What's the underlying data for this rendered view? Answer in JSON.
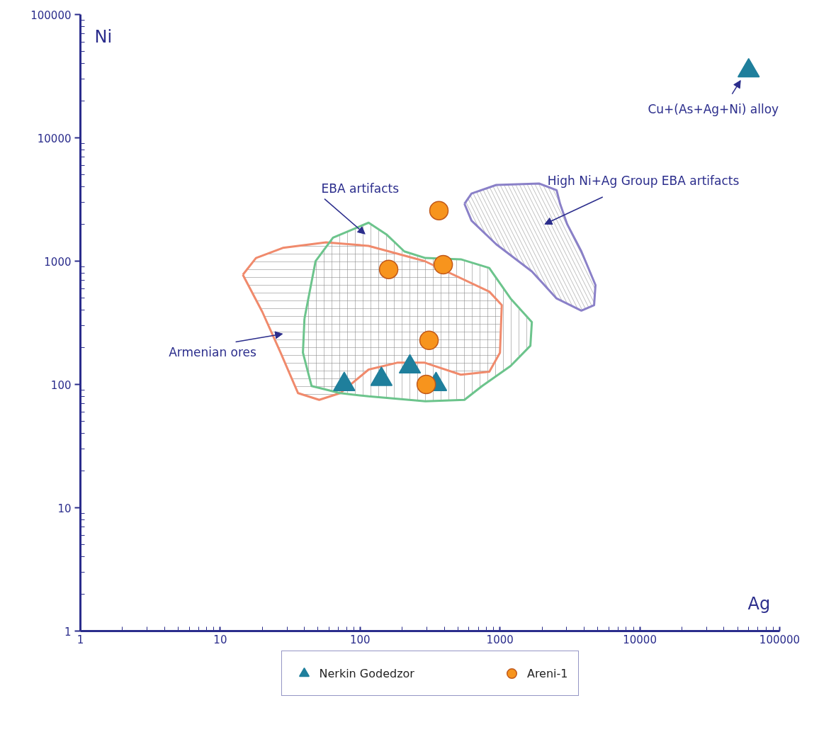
{
  "chart_data": {
    "type": "scatter",
    "xlabel": "Ag",
    "ylabel": "Ni",
    "log": "xy",
    "grid": false,
    "legend": "bottom",
    "xlim": [
      1,
      100000
    ],
    "ylim": [
      1,
      100000
    ],
    "xticks": [
      1,
      10,
      100,
      1000,
      10000,
      100000
    ],
    "yticks": [
      1,
      10,
      100,
      1000,
      10000,
      100000
    ],
    "series": [
      {
        "type": "area",
        "color": "#f08a6c",
        "x": [
          14.5,
          18,
          28,
          57,
          115,
          290,
          840,
          1030,
          1000,
          840,
          525,
          290,
          184,
          115,
          72,
          51,
          36,
          27,
          20,
          14.5
        ],
        "values": [
          775,
          1060,
          1280,
          1420,
          1330,
          1000,
          565,
          440,
          181,
          127,
          120,
          150,
          150,
          132,
          85,
          75,
          85,
          181,
          387,
          775
        ]
      },
      {
        "type": "area",
        "color": "#6cc48c",
        "x": [
          40,
          48,
          64,
          115,
          154,
          207,
          293,
          525,
          838,
          1190,
          1690,
          1650,
          1190,
          745,
          557,
          293,
          115,
          72,
          45,
          39,
          40
        ],
        "values": [
          341,
          997,
          1550,
          2050,
          1650,
          1200,
          1060,
          1035,
          880,
          498,
          320,
          206,
          141,
          97,
          75,
          73,
          80,
          85,
          97,
          181,
          341
        ]
      },
      {
        "type": "area",
        "color": "#8a80c8",
        "x": [
          557,
          626,
          941,
          1900,
          2540,
          2690,
          3020,
          3820,
          4820,
          4710,
          3820,
          2540,
          1690,
          941,
          626,
          557
        ],
        "values": [
          2920,
          3530,
          4150,
          4260,
          3760,
          2920,
          2000,
          1200,
          640,
          440,
          397,
          498,
          826,
          1370,
          2130,
          2920
        ]
      },
      {
        "name": "Nerkin Godedzor",
        "marker": "triangle",
        "color": "#1f7f9c",
        "x": [
          77,
          142,
          227,
          349,
          60000
        ],
        "values": [
          100,
          110,
          139,
          100,
          35000
        ]
      },
      {
        "name": "Areni-1",
        "marker": "circle",
        "color": "#f7941d",
        "x": [
          366,
          160,
          393,
          311,
          297
        ],
        "values": [
          2570,
          857,
          936,
          228,
          100
        ]
      }
    ],
    "annotations": [
      "EBA artifacts",
      "High Ni+Ag Group EBA artifacts",
      "Armenian ores",
      "Cu+(As+Ag+Ni) alloy"
    ]
  }
}
